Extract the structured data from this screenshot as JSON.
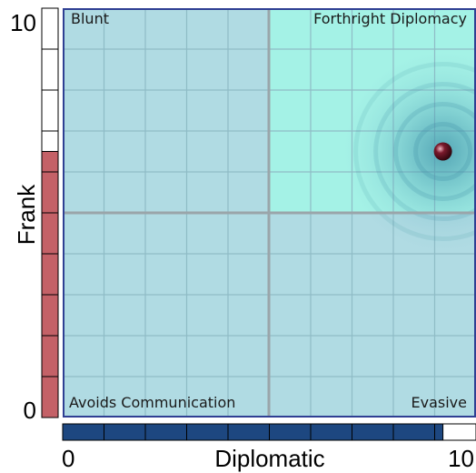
{
  "chart_data": {
    "type": "scatter",
    "x": {
      "label": "Diplomatic",
      "min_label": "0",
      "max_label": "10",
      "range": [
        0,
        10
      ]
    },
    "y": {
      "label": "Frank",
      "min_label": "0",
      "max_label": "10",
      "range": [
        0,
        10
      ]
    },
    "point": {
      "x": 9.2,
      "y": 6.5
    },
    "x_bar_level": 9.2,
    "y_bar_level": 6.5,
    "quadrants": {
      "top_left": "Blunt",
      "top_right": "Forthright Diplomacy",
      "bottom_left": "Avoids Communication",
      "bottom_right": "Evasive"
    },
    "grid": true,
    "highlighted_quadrant": "top-right"
  },
  "colors": {
    "plot_bg": "#b0dbe3",
    "highlight_bg": "#a4f2e6",
    "grid": "#8fbcc6",
    "divider": "#9aa5aa",
    "plot_border": "#2f3f93",
    "x_bar": "#1d4780",
    "y_bar": "#c46167",
    "point": "#4a0d18"
  }
}
